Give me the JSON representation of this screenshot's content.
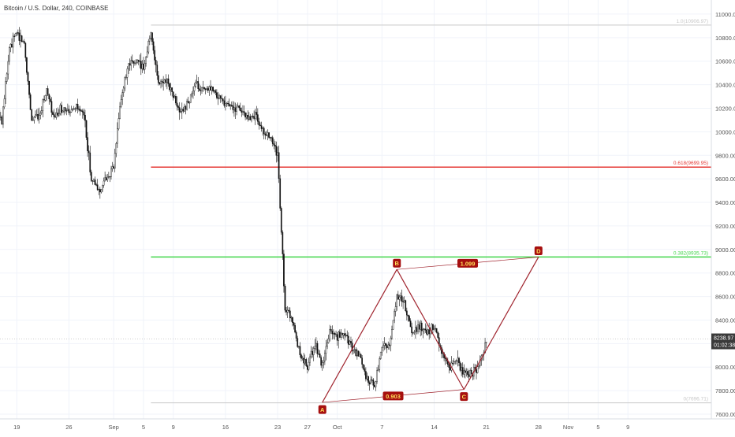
{
  "header": {
    "title": "Bitcoin / U.S. Dollar, 240, COINBASE"
  },
  "chart_data": {
    "type": "candlestick",
    "title": "Bitcoin / U.S. Dollar, 240, COINBASE",
    "ylim": [
      7560,
      11120
    ],
    "grid": true,
    "y_ticks": [
      "11000.00",
      "10800.00",
      "10600.00",
      "10400.00",
      "10200.00",
      "10000.00",
      "9800.00",
      "9600.00",
      "9400.00",
      "9200.00",
      "9000.00",
      "8800.00",
      "8600.00",
      "8400.00",
      "8200.00",
      "8000.00",
      "7800.00",
      "7600.00"
    ],
    "x_ticks": [
      "19",
      "26",
      "Sep",
      "5",
      "9",
      "16",
      "23",
      "27",
      "Oct",
      "7",
      "14",
      "21",
      "28",
      "Nov",
      "5",
      "9"
    ],
    "price_path": [
      {
        "date": "Aug 15",
        "price": 10000
      },
      {
        "date": "Aug 16",
        "price": 10300
      },
      {
        "date": "Aug 17",
        "price": 10100
      },
      {
        "date": "Aug 18",
        "price": 10700
      },
      {
        "date": "Aug 19",
        "price": 10850
      },
      {
        "date": "Aug 20",
        "price": 10750
      },
      {
        "date": "Aug 21",
        "price": 10100
      },
      {
        "date": "Aug 22",
        "price": 10150
      },
      {
        "date": "Aug 23",
        "price": 10350
      },
      {
        "date": "Aug 24",
        "price": 10100
      },
      {
        "date": "Aug 25",
        "price": 10200
      },
      {
        "date": "Aug 26",
        "price": 10150
      },
      {
        "date": "Aug 27",
        "price": 10200
      },
      {
        "date": "Aug 28",
        "price": 10150
      },
      {
        "date": "Aug 29",
        "price": 9600
      },
      {
        "date": "Aug 30",
        "price": 9500
      },
      {
        "date": "Aug 31",
        "price": 9600
      },
      {
        "date": "Sep 1",
        "price": 9700
      },
      {
        "date": "Sep 2",
        "price": 10300
      },
      {
        "date": "Sep 3",
        "price": 10550
      },
      {
        "date": "Sep 4",
        "price": 10600
      },
      {
        "date": "Sep 5",
        "price": 10550
      },
      {
        "date": "Sep 6",
        "price": 10850
      },
      {
        "date": "Sep 7",
        "price": 10400
      },
      {
        "date": "Sep 8",
        "price": 10450
      },
      {
        "date": "Sep 9",
        "price": 10300
      },
      {
        "date": "Sep 10",
        "price": 10150
      },
      {
        "date": "Sep 11",
        "price": 10250
      },
      {
        "date": "Sep 12",
        "price": 10400
      },
      {
        "date": "Sep 13",
        "price": 10350
      },
      {
        "date": "Sep 14",
        "price": 10350
      },
      {
        "date": "Sep 15",
        "price": 10300
      },
      {
        "date": "Sep 16",
        "price": 10250
      },
      {
        "date": "Sep 17",
        "price": 10200
      },
      {
        "date": "Sep 18",
        "price": 10200
      },
      {
        "date": "Sep 19",
        "price": 10100
      },
      {
        "date": "Sep 20",
        "price": 10150
      },
      {
        "date": "Sep 21",
        "price": 10000
      },
      {
        "date": "Sep 22",
        "price": 9950
      },
      {
        "date": "Sep 23",
        "price": 9800
      },
      {
        "date": "Sep 24",
        "price": 8500
      },
      {
        "date": "Sep 25",
        "price": 8400
      },
      {
        "date": "Sep 26",
        "price": 8100
      },
      {
        "date": "Sep 27",
        "price": 8000
      },
      {
        "date": "Sep 28",
        "price": 8200
      },
      {
        "date": "Sep 29",
        "price": 8000
      },
      {
        "date": "Sep 30",
        "price": 8300
      },
      {
        "date": "Oct 1",
        "price": 8250
      },
      {
        "date": "Oct 2",
        "price": 8300
      },
      {
        "date": "Oct 3",
        "price": 8150
      },
      {
        "date": "Oct 4",
        "price": 8100
      },
      {
        "date": "Oct 5",
        "price": 7900
      },
      {
        "date": "Oct 6",
        "price": 7850
      },
      {
        "date": "Oct 7",
        "price": 8150
      },
      {
        "date": "Oct 8",
        "price": 8200
      },
      {
        "date": "Oct 9",
        "price": 8600
      },
      {
        "date": "Oct 10",
        "price": 8550
      },
      {
        "date": "Oct 11",
        "price": 8300
      },
      {
        "date": "Oct 12",
        "price": 8350
      },
      {
        "date": "Oct 13",
        "price": 8300
      },
      {
        "date": "Oct 14",
        "price": 8350
      },
      {
        "date": "Oct 15",
        "price": 8150
      },
      {
        "date": "Oct 16",
        "price": 8000
      },
      {
        "date": "Oct 17",
        "price": 8050
      },
      {
        "date": "Oct 18",
        "price": 7950
      },
      {
        "date": "Oct 19",
        "price": 7950
      },
      {
        "date": "Oct 20",
        "price": 8000
      },
      {
        "date": "Oct 21",
        "price": 8239
      }
    ],
    "annotations": {
      "price_levels": [
        {
          "label": "1.0(10906.97)",
          "price": 10906.97,
          "color": "#c8c8c8"
        },
        {
          "label": "0.618(9699.95)",
          "price": 9699.95,
          "color": "#e53935"
        },
        {
          "label": "0.382(8935.73)",
          "price": 8935.73,
          "color": "#43d64b"
        },
        {
          "label": "0(7696.71)",
          "price": 7696.71,
          "color": "#c8c8c8"
        }
      ],
      "pattern_points": [
        {
          "label": "A",
          "date": "Sep 29",
          "price": 7700
        },
        {
          "label": "B",
          "date": "Oct 9",
          "price": 8830
        },
        {
          "label": "C",
          "date": "Oct 18",
          "price": 7810
        },
        {
          "label": "D",
          "date": "Oct 28",
          "price": 8935
        }
      ],
      "ratios": [
        {
          "label": "0.903",
          "from": "A",
          "to": "C"
        },
        {
          "label": "1.099",
          "from": "B",
          "to": "D"
        }
      ]
    },
    "current_price": {
      "value": "8238.97",
      "countdown": "01:02:38",
      "color": "#3a3a3a"
    },
    "colors": {
      "candle": "#111111",
      "grid": "#f0f3fa",
      "pattern": "#a0242e",
      "badge": "#a60f0f",
      "badge_text": "#ffde59",
      "axis_text": "#555555"
    }
  }
}
